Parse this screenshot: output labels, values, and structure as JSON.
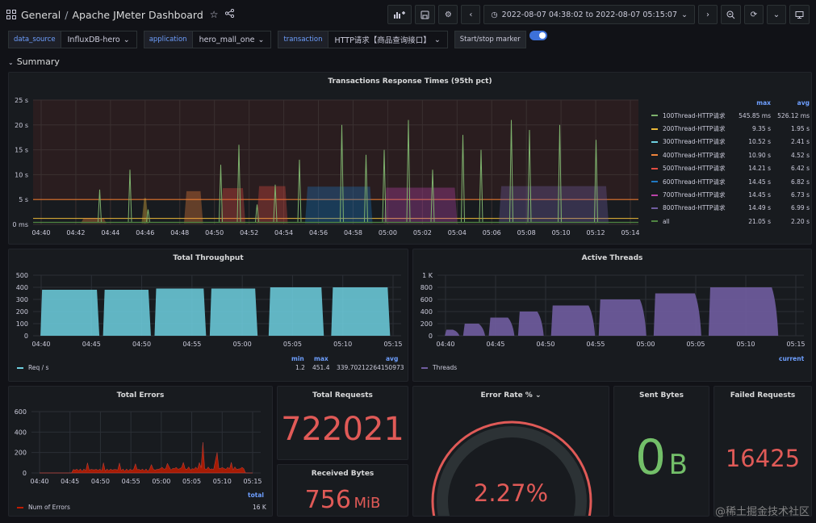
{
  "breadcrumb": {
    "folder": "General",
    "separator": "/",
    "dashboard": "Apache JMeter Dashboard"
  },
  "toolbar": {
    "time_range": "2022-08-07 04:38:02 to 2022-08-07 05:15:07"
  },
  "variables": [
    {
      "label": "data_source",
      "value": "InfluxDB-hero"
    },
    {
      "label": "application",
      "value": "hero_mall_one"
    },
    {
      "label": "transaction",
      "value": "HTTP请求【商品查询接口】"
    }
  ],
  "marker": {
    "label": "Start/stop marker",
    "enabled": true
  },
  "row_title": "Summary",
  "panels": {
    "response_times": {
      "title": "Transactions Response Times (95th pct)",
      "legend_headers": [
        "max",
        "avg"
      ],
      "legend": [
        {
          "name": "100Thread-HTTP请求",
          "max": "545.85 ms",
          "avg": "526.12 ms",
          "color": "#7eb26d"
        },
        {
          "name": "200Thread-HTTP请求",
          "max": "9.35 s",
          "avg": "1.95 s",
          "color": "#eab839"
        },
        {
          "name": "300Thread-HTTP请求",
          "max": "10.52 s",
          "avg": "2.41 s",
          "color": "#6ed0e0"
        },
        {
          "name": "400Thread-HTTP请求",
          "max": "10.90 s",
          "avg": "4.52 s",
          "color": "#ef843c"
        },
        {
          "name": "500Thread-HTTP请求",
          "max": "14.21 s",
          "avg": "6.42 s",
          "color": "#e24d42"
        },
        {
          "name": "600Thread-HTTP请求",
          "max": "14.45 s",
          "avg": "6.82 s",
          "color": "#1f78c1"
        },
        {
          "name": "700Thread-HTTP请求",
          "max": "14.45 s",
          "avg": "6.73 s",
          "color": "#ba43a9"
        },
        {
          "name": "800Thread-HTTP请求",
          "max": "14.49 s",
          "avg": "6.99 s",
          "color": "#705da0"
        },
        {
          "name": "all",
          "max": "21.05 s",
          "avg": "2.20 s",
          "color": "#508642"
        }
      ],
      "y_ticks": [
        "25 s",
        "20 s",
        "15 s",
        "10 s",
        "5 s",
        "0 ms"
      ],
      "x_ticks": [
        "04:40",
        "04:42",
        "04:44",
        "04:46",
        "04:48",
        "04:50",
        "04:52",
        "04:54",
        "04:56",
        "04:58",
        "05:00",
        "05:02",
        "05:04",
        "05:06",
        "05:08",
        "05:10",
        "05:12",
        "05:14"
      ]
    },
    "throughput": {
      "title": "Total Throughput",
      "y_ticks": [
        "500",
        "400",
        "300",
        "200",
        "100",
        "0"
      ],
      "x_ticks": [
        "04:40",
        "04:45",
        "04:50",
        "04:55",
        "05:00",
        "05:05",
        "05:10",
        "05:15"
      ],
      "legend_headers": [
        "min",
        "max",
        "avg"
      ],
      "legend": {
        "name": "Req / s",
        "min": "1.2",
        "max": "451.4",
        "avg": "339.70212264150973",
        "color": "#6ed0e0"
      }
    },
    "threads": {
      "title": "Active Threads",
      "y_ticks": [
        "1 K",
        "800",
        "600",
        "400",
        "200",
        "0"
      ],
      "x_ticks": [
        "04:40",
        "04:45",
        "04:50",
        "04:55",
        "05:00",
        "05:05",
        "05:10",
        "05:15"
      ],
      "legend_headers": [
        "current"
      ],
      "legend": {
        "name": "Threads",
        "color": "#705da0"
      }
    },
    "errors": {
      "title": "Total Errors",
      "y_ticks": [
        "600",
        "400",
        "200",
        "0"
      ],
      "x_ticks": [
        "04:40",
        "04:45",
        "04:50",
        "04:55",
        "05:00",
        "05:05",
        "05:10",
        "05:15"
      ],
      "legend_headers": [
        "total"
      ],
      "legend": {
        "name": "Num of Errors",
        "total": "16 K",
        "color": "#bf1b00"
      }
    },
    "total_requests": {
      "title": "Total Requests",
      "value": "722021",
      "color": "#e05a57"
    },
    "received_bytes": {
      "title": "Received Bytes",
      "value": "756",
      "unit": "MiB",
      "color": "#e05a57"
    },
    "error_rate": {
      "title": "Error Rate %",
      "value": "2.27%",
      "percent": 2.27,
      "color": "#e05a57"
    },
    "sent_bytes": {
      "title": "Sent Bytes",
      "value": "0",
      "unit": "B",
      "color": "#73bf69"
    },
    "failed_requests": {
      "title": "Failed Requests",
      "value": "16425",
      "color": "#e05a57"
    }
  },
  "watermark": "@稀土掘金技术社区"
}
